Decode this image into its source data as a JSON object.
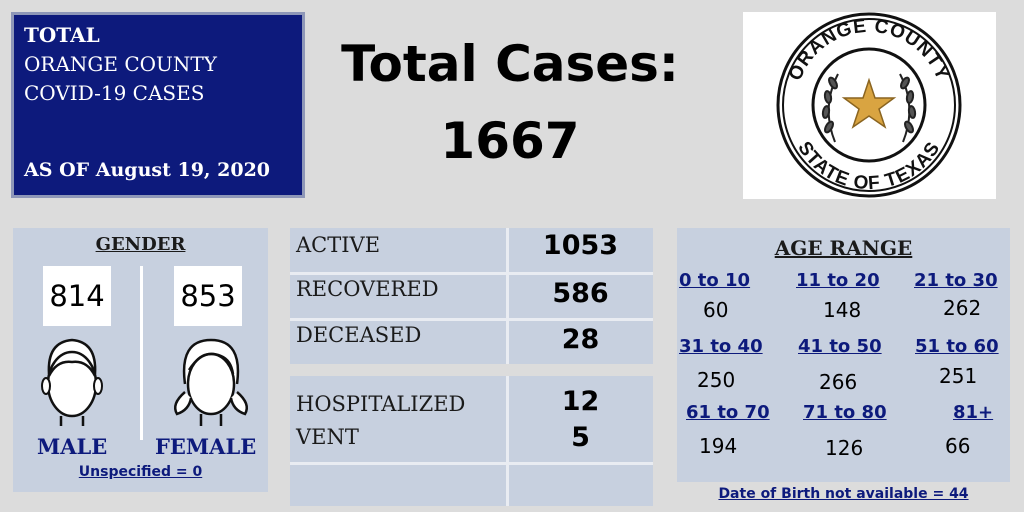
{
  "header": {
    "line1": "TOTAL",
    "line2": "ORANGE COUNTY",
    "line3": "COVID-19 CASES",
    "as_of": "AS OF August 19, 2020"
  },
  "total": {
    "label": "Total Cases:",
    "value": "1667"
  },
  "seal": {
    "top_text": "ORANGE COUNTY",
    "bottom_text": "STATE OF TEXAS",
    "icon": "star-seal-icon",
    "star_color": "#d9a441"
  },
  "gender": {
    "title": "GENDER",
    "male_count": "814",
    "female_count": "853",
    "male_label": "MALE",
    "female_label": "FEMALE",
    "unspecified": "Unspecified = 0"
  },
  "status": {
    "active_label": "ACTIVE",
    "active_value": "1053",
    "recovered_label": "RECOVERED",
    "recovered_value": "586",
    "deceased_label": "DECEASED",
    "deceased_value": "28",
    "hospitalized_label": "HOSPITALIZED",
    "hospitalized_value": "12",
    "vent_label": "VENT",
    "vent_value": "5"
  },
  "age": {
    "title": "AGE RANGE",
    "ranges": [
      {
        "label": "0 to 10",
        "value": "60"
      },
      {
        "label": "11 to 20",
        "value": "148"
      },
      {
        "label": "21 to 30",
        "value": "262"
      },
      {
        "label": "31 to 40",
        "value": "250"
      },
      {
        "label": "41 to 50",
        "value": "266"
      },
      {
        "label": "51 to 60",
        "value": "251"
      },
      {
        "label": "61 to 70",
        "value": "194"
      },
      {
        "label": "71 to 80",
        "value": "126"
      },
      {
        "label": "81+",
        "value": "66"
      }
    ],
    "dob_note": "Date of Birth not available = 44"
  },
  "colors": {
    "navy": "#0d1a7c",
    "panel": "#c7d0df",
    "background": "#dcdcdc"
  }
}
